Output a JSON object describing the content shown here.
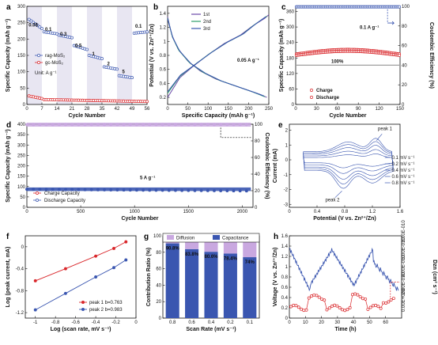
{
  "colors": {
    "blue": "#3a56b0",
    "red": "#d9262a",
    "lavender": "#c9a8e0",
    "green": "#2f9e6b",
    "purple": "#6a4aa8",
    "shade": "#e8e6f2",
    "gray": "#a0a0a0"
  },
  "chart_data": [
    {
      "panel": "a",
      "type": "scatter",
      "xlabel": "Cycle Number",
      "ylabel": "Specific Capacity (mAh g⁻¹)",
      "xlim": [
        0,
        56
      ],
      "ylim": [
        0,
        300
      ],
      "xticks": [
        0,
        7,
        14,
        21,
        28,
        35,
        42,
        49,
        56
      ],
      "yticks": [
        0,
        50,
        100,
        150,
        200,
        250,
        300
      ],
      "rate_labels": [
        {
          "text": "0.05",
          "x": 3,
          "y": 238
        },
        {
          "text": "0.1",
          "x": 10,
          "y": 225
        },
        {
          "text": "0.3",
          "x": 17,
          "y": 210
        },
        {
          "text": "0.5",
          "x": 24,
          "y": 175
        },
        {
          "text": "1",
          "x": 31,
          "y": 150
        },
        {
          "text": "2",
          "x": 38,
          "y": 120
        },
        {
          "text": "5",
          "x": 45,
          "y": 95
        },
        {
          "text": "0.1",
          "x": 52,
          "y": 235
        }
      ],
      "legend": [
        "rag-MoS₂",
        "gc-MoS₂"
      ],
      "unit_label": "Unit:  A g⁻¹",
      "series": [
        {
          "name": "rag-MoS₂",
          "color": "blue",
          "segments": [
            {
              "x0": 1,
              "x1": 7,
              "v0": 260,
              "v1": 232
            },
            {
              "x0": 8,
              "x1": 14,
              "v0": 222,
              "v1": 216
            },
            {
              "x0": 15,
              "x1": 21,
              "v0": 212,
              "v1": 204
            },
            {
              "x0": 22,
              "x1": 28,
              "v0": 180,
              "v1": 168
            },
            {
              "x0": 29,
              "x1": 35,
              "v0": 150,
              "v1": 140
            },
            {
              "x0": 36,
              "x1": 42,
              "v0": 115,
              "v1": 108
            },
            {
              "x0": 43,
              "x1": 49,
              "v0": 88,
              "v1": 82
            },
            {
              "x0": 50,
              "x1": 56,
              "v0": 218,
              "v1": 222
            }
          ]
        },
        {
          "name": "gc-MoS₂",
          "color": "red",
          "segments": [
            {
              "x0": 1,
              "x1": 7,
              "v0": 26,
              "v1": 18
            },
            {
              "x0": 8,
              "x1": 56,
              "v0": 15,
              "v1": 9
            }
          ]
        }
      ]
    },
    {
      "panel": "b",
      "type": "line",
      "xlabel": "Specific Capacity (mAh g⁻¹)",
      "ylabel": "Potential (V vs. Zn²⁺/Zn)",
      "xlim": [
        0,
        250
      ],
      "ylim": [
        0.1,
        1.5
      ],
      "xticks": [
        0,
        50,
        100,
        150,
        200,
        250
      ],
      "yticks": [
        0.2,
        0.4,
        0.6,
        0.8,
        1.0,
        1.2,
        1.4
      ],
      "annotation": "0.05 A g⁻¹",
      "legend": [
        "1st",
        "2nd",
        "3rd"
      ],
      "series": [
        {
          "name": "1st",
          "color": "purple",
          "discharge": [
            [
              0,
              1.35
            ],
            [
              10,
              1.1
            ],
            [
              25,
              0.9
            ],
            [
              50,
              0.72
            ],
            [
              80,
              0.58
            ],
            [
              120,
              0.46
            ],
            [
              160,
              0.38
            ],
            [
              200,
              0.3
            ],
            [
              230,
              0.24
            ],
            [
              245,
              0.2
            ]
          ],
          "charge": [
            [
              0,
              0.2
            ],
            [
              30,
              0.48
            ],
            [
              60,
              0.63
            ],
            [
              100,
              0.81
            ],
            [
              140,
              0.97
            ],
            [
              180,
              1.09
            ],
            [
              210,
              1.22
            ],
            [
              240,
              1.33
            ],
            [
              250,
              1.38
            ]
          ]
        },
        {
          "name": "2nd",
          "color": "green",
          "discharge": [
            [
              0,
              1.33
            ],
            [
              12,
              1.06
            ],
            [
              28,
              0.87
            ],
            [
              55,
              0.69
            ],
            [
              90,
              0.55
            ],
            [
              130,
              0.44
            ],
            [
              170,
              0.36
            ],
            [
              210,
              0.28
            ],
            [
              240,
              0.21
            ]
          ],
          "charge": [
            [
              0,
              0.26
            ],
            [
              30,
              0.5
            ],
            [
              65,
              0.66
            ],
            [
              105,
              0.83
            ],
            [
              145,
              0.98
            ],
            [
              185,
              1.1
            ],
            [
              215,
              1.24
            ],
            [
              245,
              1.36
            ]
          ]
        },
        {
          "name": "3rd",
          "color": "blue",
          "discharge": [
            [
              0,
              1.32
            ],
            [
              13,
              1.05
            ],
            [
              30,
              0.86
            ],
            [
              58,
              0.68
            ],
            [
              95,
              0.54
            ],
            [
              135,
              0.43
            ],
            [
              175,
              0.35
            ],
            [
              215,
              0.27
            ],
            [
              238,
              0.22
            ]
          ],
          "charge": [
            [
              0,
              0.28
            ],
            [
              32,
              0.52
            ],
            [
              68,
              0.67
            ],
            [
              108,
              0.84
            ],
            [
              148,
              0.99
            ],
            [
              188,
              1.11
            ],
            [
              218,
              1.25
            ],
            [
              242,
              1.35
            ]
          ]
        }
      ]
    },
    {
      "panel": "c",
      "type": "scatter",
      "xlabel": "Cycle Number",
      "ylabel": "Specific Capacity (mAh g⁻¹)",
      "y2label": "Coulombic Efficiency (%)",
      "xlim": [
        0,
        150
      ],
      "ylim": [
        0,
        380
      ],
      "y2lim": [
        0,
        100
      ],
      "xticks": [
        0,
        30,
        60,
        90,
        120,
        150
      ],
      "yticks": [
        0,
        60,
        120,
        180,
        240,
        300,
        360
      ],
      "y2ticks": [
        0,
        20,
        40,
        60,
        80,
        100
      ],
      "annotation": "0.1 A g⁻¹",
      "ce_label": "100%",
      "legend": [
        "Charge",
        "Discharge"
      ],
      "series": [
        {
          "name": "Coulombic Efficiency",
          "color": "blue",
          "value": 99.5
        },
        {
          "name": "Charge",
          "color": "red",
          "v0": 195,
          "v1": 215
        },
        {
          "name": "Discharge",
          "color": "red",
          "v0": 190,
          "v1": 208
        }
      ]
    },
    {
      "panel": "d",
      "type": "scatter",
      "xlabel": "Cycle Number",
      "ylabel": "Specific Capacity (mAh g⁻¹)",
      "y2label": "Coulombic Efficiency (%)",
      "xlim": [
        0,
        2100
      ],
      "ylim": [
        0,
        400
      ],
      "y2lim": [
        0,
        100
      ],
      "xticks": [
        0,
        500,
        1000,
        1500,
        2000
      ],
      "yticks": [
        0,
        50,
        100,
        150,
        200,
        250,
        300,
        350,
        400
      ],
      "y2ticks": [
        0,
        20,
        40,
        60,
        80,
        100
      ],
      "annotation": "5 A g⁻¹",
      "legend": [
        "Charge Capacity",
        "Discharge Capacity"
      ],
      "series": [
        {
          "name": "Coulombic Efficiency",
          "color": "lavender",
          "value": 99.5
        },
        {
          "name": "Charge Capacity",
          "color": "red",
          "v0": 88,
          "v1": 80
        },
        {
          "name": "Discharge Capacity",
          "color": "blue",
          "v0": 87,
          "v1": 79
        }
      ]
    },
    {
      "panel": "e",
      "type": "line",
      "xlabel": "Potential (V vs. Zn²⁺/Zn)",
      "ylabel": "Current (mA)",
      "xlim": [
        0.0,
        1.6
      ],
      "ylim": [
        -3.2,
        2.4
      ],
      "xticks": [
        0.0,
        0.4,
        0.8,
        1.2,
        1.6
      ],
      "yticks": [
        -3,
        -2,
        -1,
        0,
        1,
        2
      ],
      "annotations": [
        "peak 1",
        "peak 2"
      ],
      "legend": [
        "0.1 mV s⁻¹",
        "0.2 mV s⁻¹",
        "0.4 mV s⁻¹",
        "0.6 mV s⁻¹",
        "0.8 mV s⁻¹"
      ],
      "scales": [
        0.28,
        0.48,
        0.68,
        0.85,
        1.0
      ]
    },
    {
      "panel": "f",
      "type": "scatter",
      "xlabel": "Log (scan rate, mV s⁻¹)",
      "ylabel": "Log (peak current, mA)",
      "xlim": [
        -1.1,
        0.0
      ],
      "ylim": [
        -1.3,
        0.2
      ],
      "xticks": [
        -1.0,
        -0.8,
        -0.6,
        -0.4,
        -0.2,
        0.0
      ],
      "yticks": [
        -1.2,
        -0.8,
        -0.4,
        0.0
      ],
      "legend": [
        "peak 1 b=0.763",
        "peak 2 b=0.983"
      ],
      "series": [
        {
          "name": "peak 1 b=0.763",
          "color": "red",
          "x": [
            -1.0,
            -0.7,
            -0.4,
            -0.22,
            -0.1
          ],
          "y": [
            -0.62,
            -0.4,
            -0.17,
            -0.03,
            0.09
          ]
        },
        {
          "name": "peak 2 b=0.983",
          "color": "blue",
          "x": [
            -1.0,
            -0.7,
            -0.4,
            -0.22,
            -0.1
          ],
          "y": [
            -1.15,
            -0.85,
            -0.55,
            -0.38,
            -0.24
          ]
        }
      ]
    },
    {
      "panel": "g",
      "type": "bar",
      "xlabel": "Scan Rate (mV s⁻¹)",
      "ylabel": "Contribution Ratio (%)",
      "categories": [
        "0.8",
        "0.6",
        "0.4",
        "0.2",
        "0.1"
      ],
      "ylim": [
        0,
        100
      ],
      "yticks": [
        0,
        20,
        40,
        60,
        80,
        100
      ],
      "legend": [
        "Diffusion",
        "Capacitance"
      ],
      "series": [
        {
          "name": "Capacitance",
          "color": "blue",
          "values": [
            90.8,
            83.8,
            80.6,
            78.4,
            74
          ]
        },
        {
          "name": "Diffusion",
          "color": "lavender",
          "values": [
            9.2,
            16.2,
            19.4,
            21.6,
            26
          ]
        }
      ],
      "data_labels": [
        "90.8%",
        "83.8%",
        "80.6%",
        "78.4%",
        "74%"
      ]
    },
    {
      "panel": "h",
      "type": "line",
      "xlabel": "Time (h)",
      "ylabel": "Voltage (V vs. Zn²⁺/Zn)",
      "y2label": "Dzn (cm² s⁻¹)",
      "xlim": [
        0,
        70
      ],
      "ylim": [
        0.0,
        1.6
      ],
      "xticks": [
        0,
        10,
        20,
        30,
        40,
        50,
        60
      ],
      "yticks": [
        0.0,
        0.2,
        0.4,
        0.6,
        0.8,
        1.0,
        1.2,
        1.4,
        1.6
      ],
      "y2ticks": [
        "0.00E+000",
        "2.00E-010",
        "4.00E-010",
        "6.00E-010",
        "8.00E-010"
      ]
    }
  ]
}
